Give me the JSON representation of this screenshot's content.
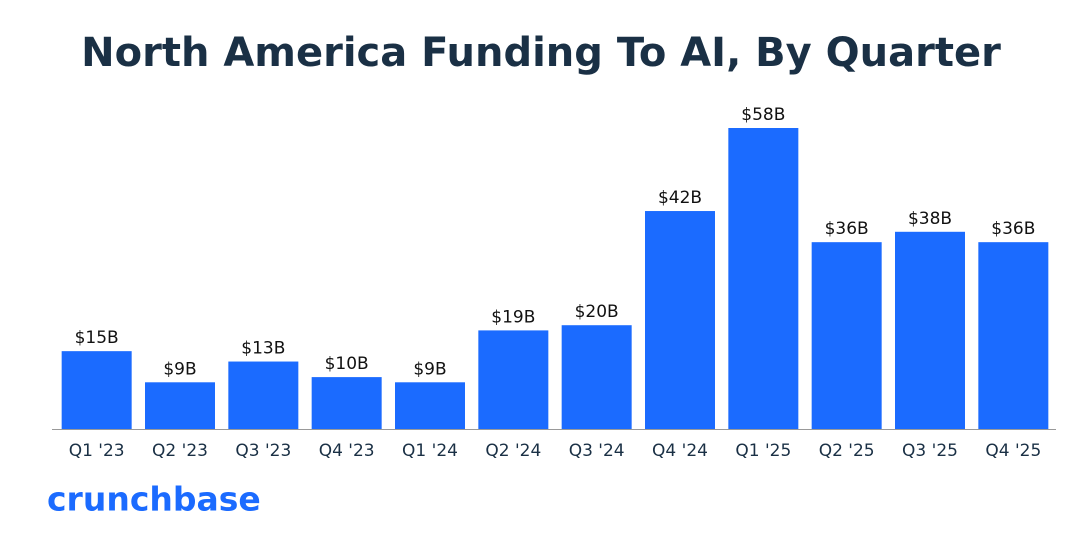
{
  "chart_data": {
    "type": "bar",
    "title": "North America Funding To AI, By Quarter",
    "categories": [
      "Q1 '23",
      "Q2 '23",
      "Q3 '23",
      "Q4 '23",
      "Q1 '24",
      "Q2 '24",
      "Q3 '24",
      "Q4 '24",
      "Q1 '25",
      "Q2 '25",
      "Q3 '25",
      "Q4 '25"
    ],
    "values": [
      15,
      9,
      13,
      10,
      9,
      19,
      20,
      42,
      58,
      36,
      38,
      36
    ],
    "value_labels": [
      "$15B",
      "$9B",
      "$13B",
      "$10B",
      "$9B",
      "$19B",
      "$20B",
      "$42B",
      "$58B",
      "$36B",
      "$38B",
      "$36B"
    ],
    "color": "#1b6bff"
  },
  "brand": "crunchbase"
}
